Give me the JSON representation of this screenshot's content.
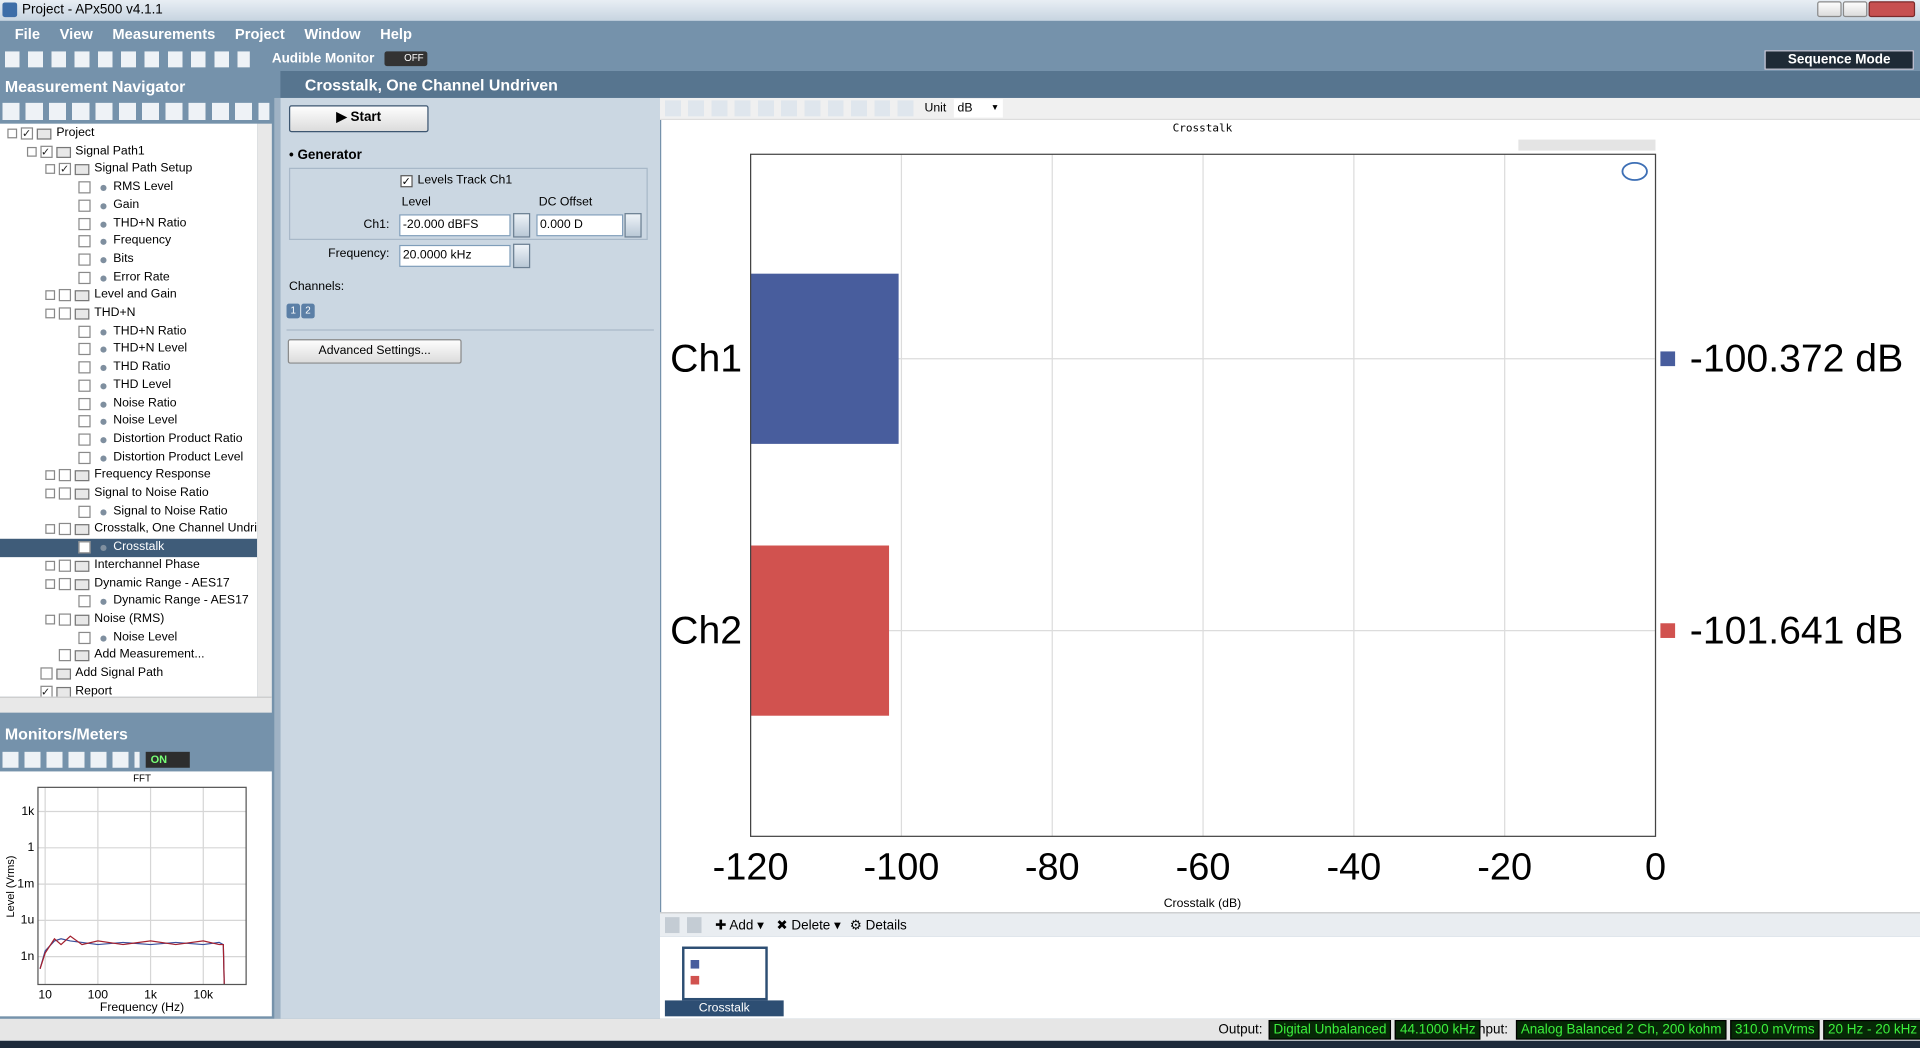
{
  "window": {
    "title": "Project - APx500 v4.1.1"
  },
  "menu": [
    "File",
    "View",
    "Measurements",
    "Project",
    "Window",
    "Help"
  ],
  "toolbar": {
    "audible_monitor": "Audible Monitor",
    "toggle": "OFF",
    "sequence_mode": "Sequence Mode"
  },
  "navigator": {
    "title": "Measurement Navigator",
    "tree": [
      {
        "label": "Project",
        "checked": true,
        "expanded": true,
        "children": [
          {
            "label": "Signal Path1",
            "checked": true,
            "expanded": true,
            "children": [
              {
                "label": "Signal Path Setup",
                "checked": true,
                "expanded": true,
                "children": [
                  {
                    "label": "RMS Level"
                  },
                  {
                    "label": "Gain"
                  },
                  {
                    "label": "THD+N Ratio"
                  },
                  {
                    "label": "Frequency"
                  },
                  {
                    "label": "Bits"
                  },
                  {
                    "label": "Error Rate"
                  }
                ]
              },
              {
                "label": "Level and Gain",
                "expanded": false
              },
              {
                "label": "THD+N",
                "expanded": true,
                "children": [
                  {
                    "label": "THD+N Ratio"
                  },
                  {
                    "label": "THD+N Level"
                  },
                  {
                    "label": "THD Ratio"
                  },
                  {
                    "label": "THD Level"
                  },
                  {
                    "label": "Noise Ratio"
                  },
                  {
                    "label": "Noise Level"
                  },
                  {
                    "label": "Distortion Product Ratio"
                  },
                  {
                    "label": "Distortion Product Level"
                  }
                ]
              },
              {
                "label": "Frequency Response",
                "expanded": false
              },
              {
                "label": "Signal to Noise Ratio",
                "expanded": true,
                "children": [
                  {
                    "label": "Signal to Noise Ratio"
                  }
                ]
              },
              {
                "label": "Crosstalk, One Channel Undriv",
                "expanded": true,
                "children": [
                  {
                    "label": "Crosstalk",
                    "selected": true
                  }
                ]
              },
              {
                "label": "Interchannel Phase",
                "expanded": false
              },
              {
                "label": "Dynamic Range - AES17",
                "expanded": true,
                "children": [
                  {
                    "label": "Dynamic Range - AES17"
                  }
                ]
              },
              {
                "label": "Noise (RMS)",
                "expanded": true,
                "children": [
                  {
                    "label": "Noise Level"
                  }
                ]
              },
              {
                "label": "Add Measurement..."
              }
            ]
          },
          {
            "label": "Add Signal Path"
          },
          {
            "label": "Report",
            "checked": true
          }
        ]
      }
    ]
  },
  "measurement": {
    "title": "Crosstalk, One Channel Undriven",
    "start": "Start",
    "generator": "Generator",
    "levels_track": "Levels Track Ch1",
    "level_label": "Level",
    "dc_offset_label": "DC Offset",
    "ch1_label": "Ch1:",
    "level_value": "-20.000 dBFS",
    "dc_offset_value": "0.000 D",
    "frequency_label": "Frequency:",
    "frequency_value": "20.0000 kHz",
    "channels_label": "Channels:",
    "channel_buttons": [
      "1",
      "2"
    ],
    "advanced": "Advanced Settings..."
  },
  "graph_toolbar": {
    "unit_label": "Unit",
    "unit_value": "dB"
  },
  "chart_data": [
    {
      "type": "bar",
      "orientation": "horizontal",
      "title": "Crosstalk",
      "x_label": "Crosstalk (dB)",
      "categories": [
        "Ch1",
        "Ch2"
      ],
      "values": [
        -100.372,
        -101.641
      ],
      "value_labels": [
        "-100.372 dB",
        "-101.641 dB"
      ],
      "colors": [
        "#485d9d",
        "#d1524f"
      ],
      "xlim": [
        -120,
        0
      ],
      "xticks": [
        -120,
        -100,
        -80,
        -60,
        -40,
        -20,
        0
      ],
      "grid": true
    },
    {
      "type": "line",
      "title": "FFT",
      "x_label": "Frequency (Hz)",
      "y_label": "Level (Vrms)",
      "log_x": true,
      "log_y": true,
      "grid": true,
      "x": [
        8,
        10,
        15,
        20,
        30,
        50,
        100,
        300,
        1000,
        3000,
        10000,
        20000,
        24000,
        25000
      ],
      "series": [
        {
          "color": "#3a4f9c",
          "values": [
            1e-10,
            3e-09,
            2e-08,
            3e-08,
            2e-08,
            1.5e-08,
            1e-08,
            1.5e-08,
            1e-08,
            1.5e-08,
            1e-08,
            1.5e-08,
            1e-08,
            5e-12
          ]
        },
        {
          "color": "#a3202e",
          "values": [
            1e-10,
            2e-09,
            3e-08,
            1e-08,
            5e-08,
            1e-08,
            2e-08,
            1e-08,
            2e-08,
            1e-08,
            2e-08,
            1e-08,
            1e-08,
            5e-12
          ]
        }
      ],
      "xlim": [
        7.3,
        65000
      ],
      "ylim": [
        5e-12,
        100000
      ],
      "xticks": [
        10,
        100,
        {
          "value": 1000,
          "label": "1k"
        },
        {
          "value": 10000,
          "label": "10k"
        }
      ],
      "yticks": [
        {
          "value": 1e-09,
          "label": "1n"
        },
        {
          "value": 1e-06,
          "label": "1u"
        },
        {
          "value": 0.001,
          "label": "1m"
        },
        1,
        {
          "value": 1000,
          "label": "1k"
        }
      ]
    }
  ],
  "result_bar": {
    "add": "Add",
    "delete": "Delete",
    "details": "Details",
    "thumbnail": "Crosstalk"
  },
  "monitors": {
    "title": "Monitors/Meters",
    "toggle": "ON"
  },
  "status": {
    "output_label": "Output:",
    "output": [
      "Digital Unbalanced",
      "44.1000 kHz"
    ],
    "input_label": "Input:",
    "input": [
      "Analog Balanced 2 Ch, 200 kohm",
      "310.0 mVrms",
      "20 Hz - 20 kHz"
    ]
  }
}
